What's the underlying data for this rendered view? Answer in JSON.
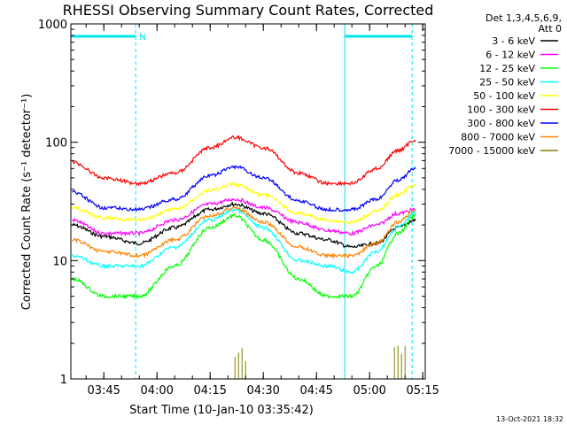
{
  "chart_data": {
    "type": "line",
    "title": "RHESSI Observing Summary Count Rates, Corrected",
    "xlabel": "Start Time (10-Jan-10 03:35:42)",
    "ylabel": "Corrected Count Rate (s⁻¹ detector⁻¹)",
    "yscale": "log",
    "ylim": [
      1,
      1000
    ],
    "xlim_minutes_after_start": [
      0,
      100
    ],
    "x_tick_labels": [
      "03:45",
      "04:00",
      "04:15",
      "04:30",
      "04:45",
      "05:00",
      "05:15"
    ],
    "y_tick_labels": [
      "1",
      "10",
      "100",
      "1000"
    ],
    "legend_header": [
      "Det 1,3,4,5,6,9,",
      "Att 0"
    ],
    "legend_position": "right",
    "footer_date": "13-Oct-2021 18:32",
    "annotations": [
      {
        "type": "night",
        "from": "03:35:42",
        "to": "03:54:00",
        "label": "N"
      },
      {
        "type": "night",
        "from": "04:53:00",
        "to": "05:12:00",
        "label": ""
      }
    ],
    "series": [
      {
        "name": "3 - 6 keV",
        "color": "#000000",
        "x": [
          "03:36",
          "03:45",
          "03:55",
          "04:05",
          "04:15",
          "04:22",
          "04:30",
          "04:40",
          "04:48",
          "04:55",
          "05:02",
          "05:08",
          "05:13"
        ],
        "y": [
          20,
          16,
          14,
          19,
          27,
          30,
          25,
          17,
          15,
          13,
          14,
          19,
          22
        ]
      },
      {
        "name": "6 - 12 keV",
        "color": "#ff00ff",
        "x": [
          "03:36",
          "03:45",
          "03:55",
          "04:05",
          "04:15",
          "04:22",
          "04:30",
          "04:40",
          "04:48",
          "04:55",
          "05:02",
          "05:08",
          "05:13"
        ],
        "y": [
          22,
          17,
          17,
          22,
          30,
          33,
          28,
          21,
          18,
          17,
          20,
          25,
          27
        ]
      },
      {
        "name": "12 - 25 keV",
        "color": "#00ff00",
        "x": [
          "03:36",
          "03:45",
          "03:55",
          "04:05",
          "04:15",
          "04:22",
          "04:30",
          "04:40",
          "04:48",
          "04:55",
          "05:02",
          "05:08",
          "05:13"
        ],
        "y": [
          7,
          5,
          5,
          9,
          19,
          24,
          15,
          7,
          5,
          5,
          9,
          17,
          24
        ]
      },
      {
        "name": "25 - 50 keV",
        "color": "#00ffff",
        "x": [
          "03:36",
          "03:45",
          "03:55",
          "04:05",
          "04:15",
          "04:22",
          "04:30",
          "04:40",
          "04:48",
          "04:55",
          "05:02",
          "05:08",
          "05:13"
        ],
        "y": [
          11,
          9,
          9,
          13,
          22,
          27,
          19,
          10,
          9,
          8,
          12,
          19,
          26
        ]
      },
      {
        "name": "50 - 100 keV",
        "color": "#ffff00",
        "x": [
          "03:36",
          "03:45",
          "03:55",
          "04:05",
          "04:15",
          "04:22",
          "04:30",
          "04:40",
          "04:48",
          "04:55",
          "05:02",
          "05:08",
          "05:13"
        ],
        "y": [
          28,
          23,
          22,
          27,
          39,
          44,
          36,
          25,
          22,
          21,
          26,
          36,
          44
        ]
      },
      {
        "name": "100 - 300 keV",
        "color": "#ff0000",
        "x": [
          "03:36",
          "03:45",
          "03:55",
          "04:05",
          "04:15",
          "04:22",
          "04:30",
          "04:40",
          "04:48",
          "04:55",
          "05:02",
          "05:08",
          "05:13"
        ],
        "y": [
          68,
          50,
          45,
          55,
          90,
          110,
          90,
          55,
          45,
          45,
          60,
          85,
          105
        ]
      },
      {
        "name": "300 - 800 keV",
        "color": "#0000ff",
        "x": [
          "03:36",
          "03:45",
          "03:55",
          "04:05",
          "04:15",
          "04:22",
          "04:30",
          "04:40",
          "04:48",
          "04:55",
          "05:02",
          "05:08",
          "05:13"
        ],
        "y": [
          38,
          28,
          27,
          33,
          52,
          62,
          50,
          32,
          27,
          27,
          33,
          48,
          60
        ]
      },
      {
        "name": "800 - 7000 keV",
        "color": "#ff8000",
        "x": [
          "03:36",
          "03:45",
          "03:55",
          "04:05",
          "04:15",
          "04:22",
          "04:30",
          "04:40",
          "04:48",
          "04:55",
          "05:02",
          "05:08",
          "05:13"
        ],
        "y": [
          15,
          12,
          11,
          15,
          24,
          28,
          21,
          13,
          11,
          11,
          14,
          21,
          27
        ]
      },
      {
        "name": "7000 - 15000 keV",
        "color": "#808000",
        "x": [
          "04:22",
          "04:23",
          "04:24",
          "04:25",
          "05:07",
          "05:08",
          "05:09",
          "05:10"
        ],
        "y": [
          1.5,
          1.5,
          1.5,
          1.5,
          1.5,
          1.5,
          1.5,
          1.5
        ]
      }
    ]
  }
}
